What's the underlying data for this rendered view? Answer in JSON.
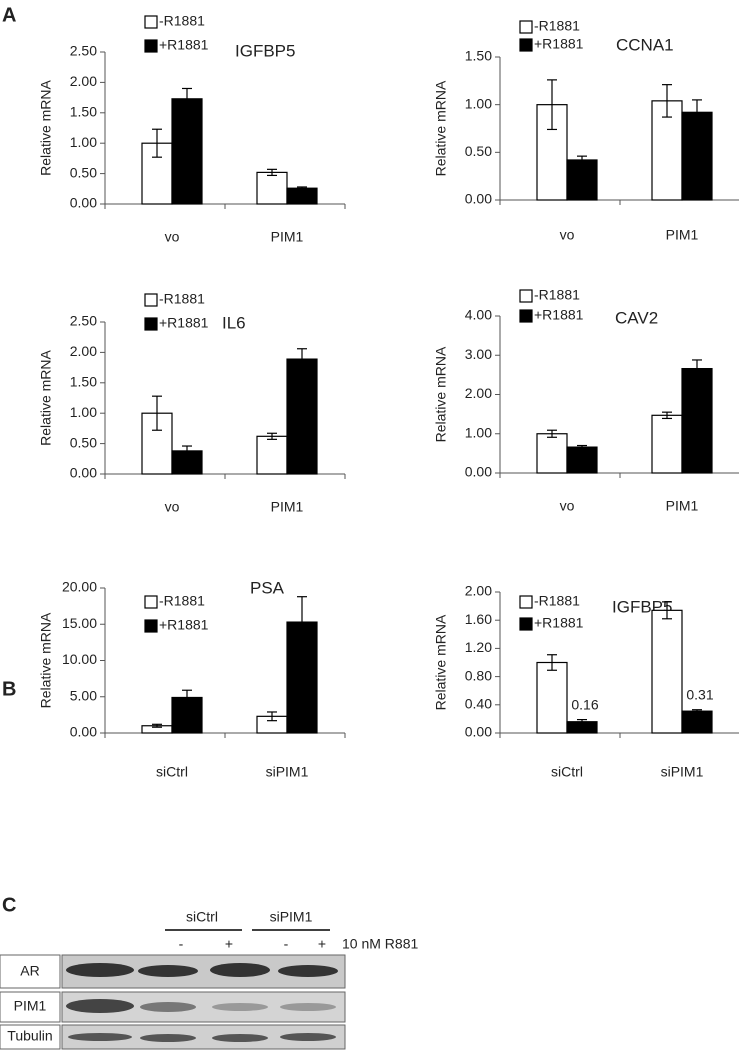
{
  "panels": [
    "A",
    "B",
    "C"
  ],
  "chart_data": [
    {
      "type": "bar",
      "title": "IGFBP5",
      "y_label": "Relative mRNA",
      "categories": [
        "vo",
        "PIM1"
      ],
      "series": [
        {
          "name": "-R1881",
          "color": "#ffffff",
          "values": [
            1.0,
            0.52
          ],
          "errors": [
            0.23,
            0.05
          ]
        },
        {
          "name": "+R1881",
          "color": "#000000",
          "values": [
            1.73,
            0.26
          ],
          "errors": [
            0.17,
            0.02
          ]
        }
      ],
      "ylim": [
        0,
        2.5
      ],
      "yticks": [
        {
          "value": 0,
          "label": "0.00"
        },
        {
          "value": 0.5,
          "label": "0.50"
        },
        {
          "value": 1,
          "label": "1.00"
        },
        {
          "value": 1.5,
          "label": "1.50"
        },
        {
          "value": 2,
          "label": "2.00"
        },
        {
          "value": 2.5,
          "label": "2.50"
        }
      ]
    },
    {
      "type": "bar",
      "title": "CCNA1",
      "y_label": "Relative mRNA",
      "categories": [
        "vo",
        "PIM1"
      ],
      "series": [
        {
          "name": "-R1881",
          "color": "#ffffff",
          "values": [
            1.0,
            1.04
          ],
          "errors": [
            0.26,
            0.17
          ]
        },
        {
          "name": "+R1881",
          "color": "#000000",
          "values": [
            0.42,
            0.92
          ],
          "errors": [
            0.04,
            0.13
          ]
        }
      ],
      "ylim": [
        0,
        1.5
      ],
      "yticks": [
        {
          "value": 0,
          "label": "0.00"
        },
        {
          "value": 0.5,
          "label": "0.50"
        },
        {
          "value": 1,
          "label": "1.00"
        },
        {
          "value": 1.5,
          "label": "1.50"
        }
      ]
    },
    {
      "type": "bar",
      "title": "IL6",
      "y_label": "Relative mRNA",
      "categories": [
        "vo",
        "PIM1"
      ],
      "series": [
        {
          "name": "-R1881",
          "color": "#ffffff",
          "values": [
            1.0,
            0.62
          ],
          "errors": [
            0.28,
            0.05
          ]
        },
        {
          "name": "+R1881",
          "color": "#000000",
          "values": [
            0.38,
            1.89
          ],
          "errors": [
            0.08,
            0.17
          ]
        }
      ],
      "ylim": [
        0,
        2.5
      ],
      "yticks": [
        {
          "value": 0,
          "label": "0.00"
        },
        {
          "value": 0.5,
          "label": "0.50"
        },
        {
          "value": 1,
          "label": "1.00"
        },
        {
          "value": 1.5,
          "label": "1.50"
        },
        {
          "value": 2,
          "label": "2.00"
        },
        {
          "value": 2.5,
          "label": "2.50"
        }
      ]
    },
    {
      "type": "bar",
      "title": "CAV2",
      "y_label": "Relative mRNA",
      "categories": [
        "vo",
        "PIM1"
      ],
      "series": [
        {
          "name": "-R1881",
          "color": "#ffffff",
          "values": [
            1.0,
            1.47
          ],
          "errors": [
            0.09,
            0.08
          ]
        },
        {
          "name": "+R1881",
          "color": "#000000",
          "values": [
            0.66,
            2.66
          ],
          "errors": [
            0.04,
            0.22
          ]
        }
      ],
      "ylim": [
        0,
        4
      ],
      "yticks": [
        {
          "value": 0,
          "label": "0.00"
        },
        {
          "value": 1,
          "label": "1.00"
        },
        {
          "value": 2,
          "label": "2.00"
        },
        {
          "value": 3,
          "label": "3.00"
        },
        {
          "value": 4,
          "label": "4.00"
        }
      ]
    },
    {
      "type": "bar",
      "title": "PSA",
      "y_label": "Relative mRNA",
      "categories": [
        "siCtrl",
        "siPIM1"
      ],
      "series": [
        {
          "name": "-R1881",
          "color": "#ffffff",
          "values": [
            1.0,
            2.3
          ],
          "errors": [
            0.2,
            0.6
          ]
        },
        {
          "name": "+R1881",
          "color": "#000000",
          "values": [
            4.9,
            15.3
          ],
          "errors": [
            1.0,
            3.5
          ]
        }
      ],
      "ylim": [
        0,
        20
      ],
      "yticks": [
        {
          "value": 0,
          "label": "0.00"
        },
        {
          "value": 5,
          "label": "5.00"
        },
        {
          "value": 10,
          "label": "10.00"
        },
        {
          "value": 15,
          "label": "15.00"
        },
        {
          "value": 20,
          "label": "20.00"
        }
      ]
    },
    {
      "type": "bar",
      "title": "IGFBP5",
      "y_label": "Relative mRNA",
      "categories": [
        "siCtrl",
        "siPIM1"
      ],
      "series": [
        {
          "name": "-R1881",
          "color": "#ffffff",
          "values": [
            1.0,
            1.74
          ],
          "errors": [
            0.11,
            0.12
          ]
        },
        {
          "name": "+R1881",
          "color": "#000000",
          "values": [
            0.16,
            0.31
          ],
          "errors": [
            0.03,
            0.02
          ],
          "value_labels": [
            "0.16",
            "0.31"
          ]
        }
      ],
      "ylim": [
        0,
        2
      ],
      "yticks": [
        {
          "value": 0,
          "label": "0.00"
        },
        {
          "value": 0.4,
          "label": "0.40"
        },
        {
          "value": 0.8,
          "label": "0.80"
        },
        {
          "value": 1.2,
          "label": "1.20"
        },
        {
          "value": 1.6,
          "label": "1.60"
        },
        {
          "value": 2,
          "label": "2.00"
        }
      ]
    }
  ],
  "blot": {
    "groups": [
      "siCtrl",
      "siPIM1"
    ],
    "lanes": [
      "-",
      "+",
      "-",
      "+"
    ],
    "treatment": "10 nM R881",
    "rows": [
      "AR",
      "PIM1",
      "Tubulin"
    ]
  }
}
